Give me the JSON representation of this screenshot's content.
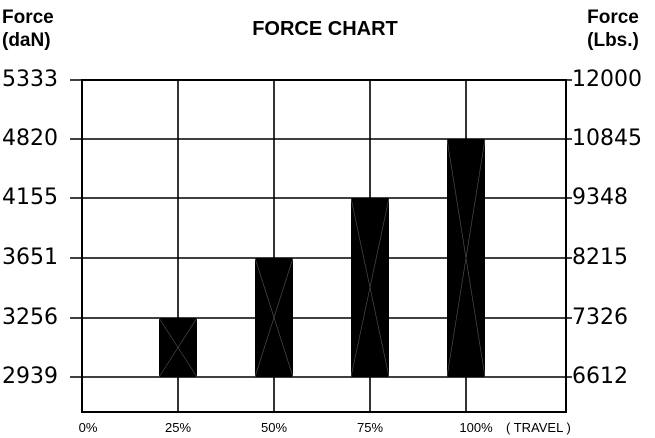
{
  "header": {
    "left_unit": "Force\n(daN)",
    "right_unit": "Force\n(Lbs.)",
    "title": "FORCE CHART"
  },
  "chart_data": {
    "type": "bar",
    "title": "FORCE CHART",
    "xlabel": "( TRAVEL )",
    "ylabel_left": "Force\n(daN)",
    "ylabel_right": "Force\n(Lbs.)",
    "x_ticks": [
      "0%",
      "25%",
      "50%",
      "75%",
      "100%"
    ],
    "categories": [
      "25%",
      "50%",
      "75%",
      "100%"
    ],
    "left_ticks": [
      "5333",
      "4820",
      "4155",
      "3651",
      "3256",
      "2939"
    ],
    "right_ticks": [
      "12000",
      "10845",
      "9348",
      "8215",
      "7326",
      "6612"
    ],
    "values_daN": [
      3256,
      3651,
      4155,
      4820
    ],
    "values_lbs": [
      7326,
      8215,
      9348,
      10845
    ],
    "bar_base_daN": 2939,
    "grid": true
  }
}
